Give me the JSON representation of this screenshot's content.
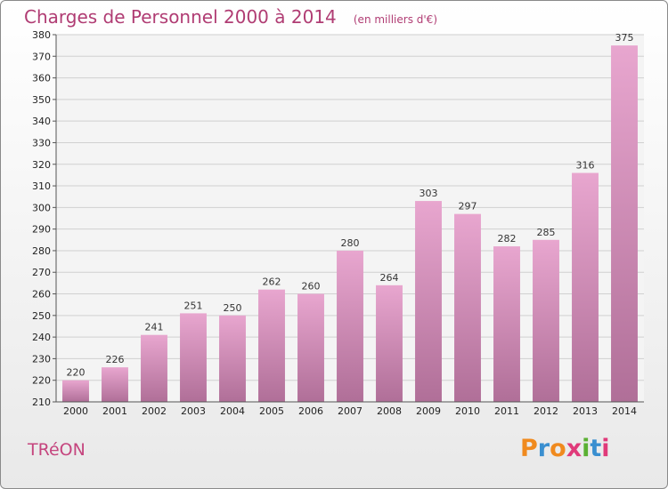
{
  "header": {
    "title": "Charges de Personnel 2000 à 2014",
    "subtitle": "(en milliers d'€)"
  },
  "footer": {
    "commune": "TRéON",
    "logo_letters": [
      "P",
      "r",
      "o",
      "x",
      "i",
      "t",
      "i"
    ]
  },
  "colors": {
    "title": "#b03c73",
    "bar_light": "#e8a6cf",
    "bar_dark": "#b06f98",
    "grid": "#d0d0d0",
    "logo": [
      "#f08a1e",
      "#3a8fd0",
      "#f08a1e",
      "#e03a7a",
      "#5bb033",
      "#3a8fd0",
      "#e03a7a"
    ]
  },
  "chart_data": {
    "type": "bar",
    "title": "Charges de Personnel 2000 à 2014",
    "subtitle": "(en milliers d'€)",
    "categories": [
      "2000",
      "2001",
      "2002",
      "2003",
      "2004",
      "2005",
      "2006",
      "2007",
      "2008",
      "2009",
      "2010",
      "2011",
      "2012",
      "2013",
      "2014"
    ],
    "values": [
      220,
      226,
      241,
      251,
      250,
      262,
      260,
      280,
      264,
      303,
      297,
      282,
      285,
      316,
      375
    ],
    "ylim": [
      210,
      380
    ],
    "yticks": [
      210,
      220,
      230,
      240,
      250,
      260,
      270,
      280,
      290,
      300,
      310,
      320,
      330,
      340,
      350,
      360,
      370,
      380
    ],
    "grid": true,
    "legend": "none"
  }
}
